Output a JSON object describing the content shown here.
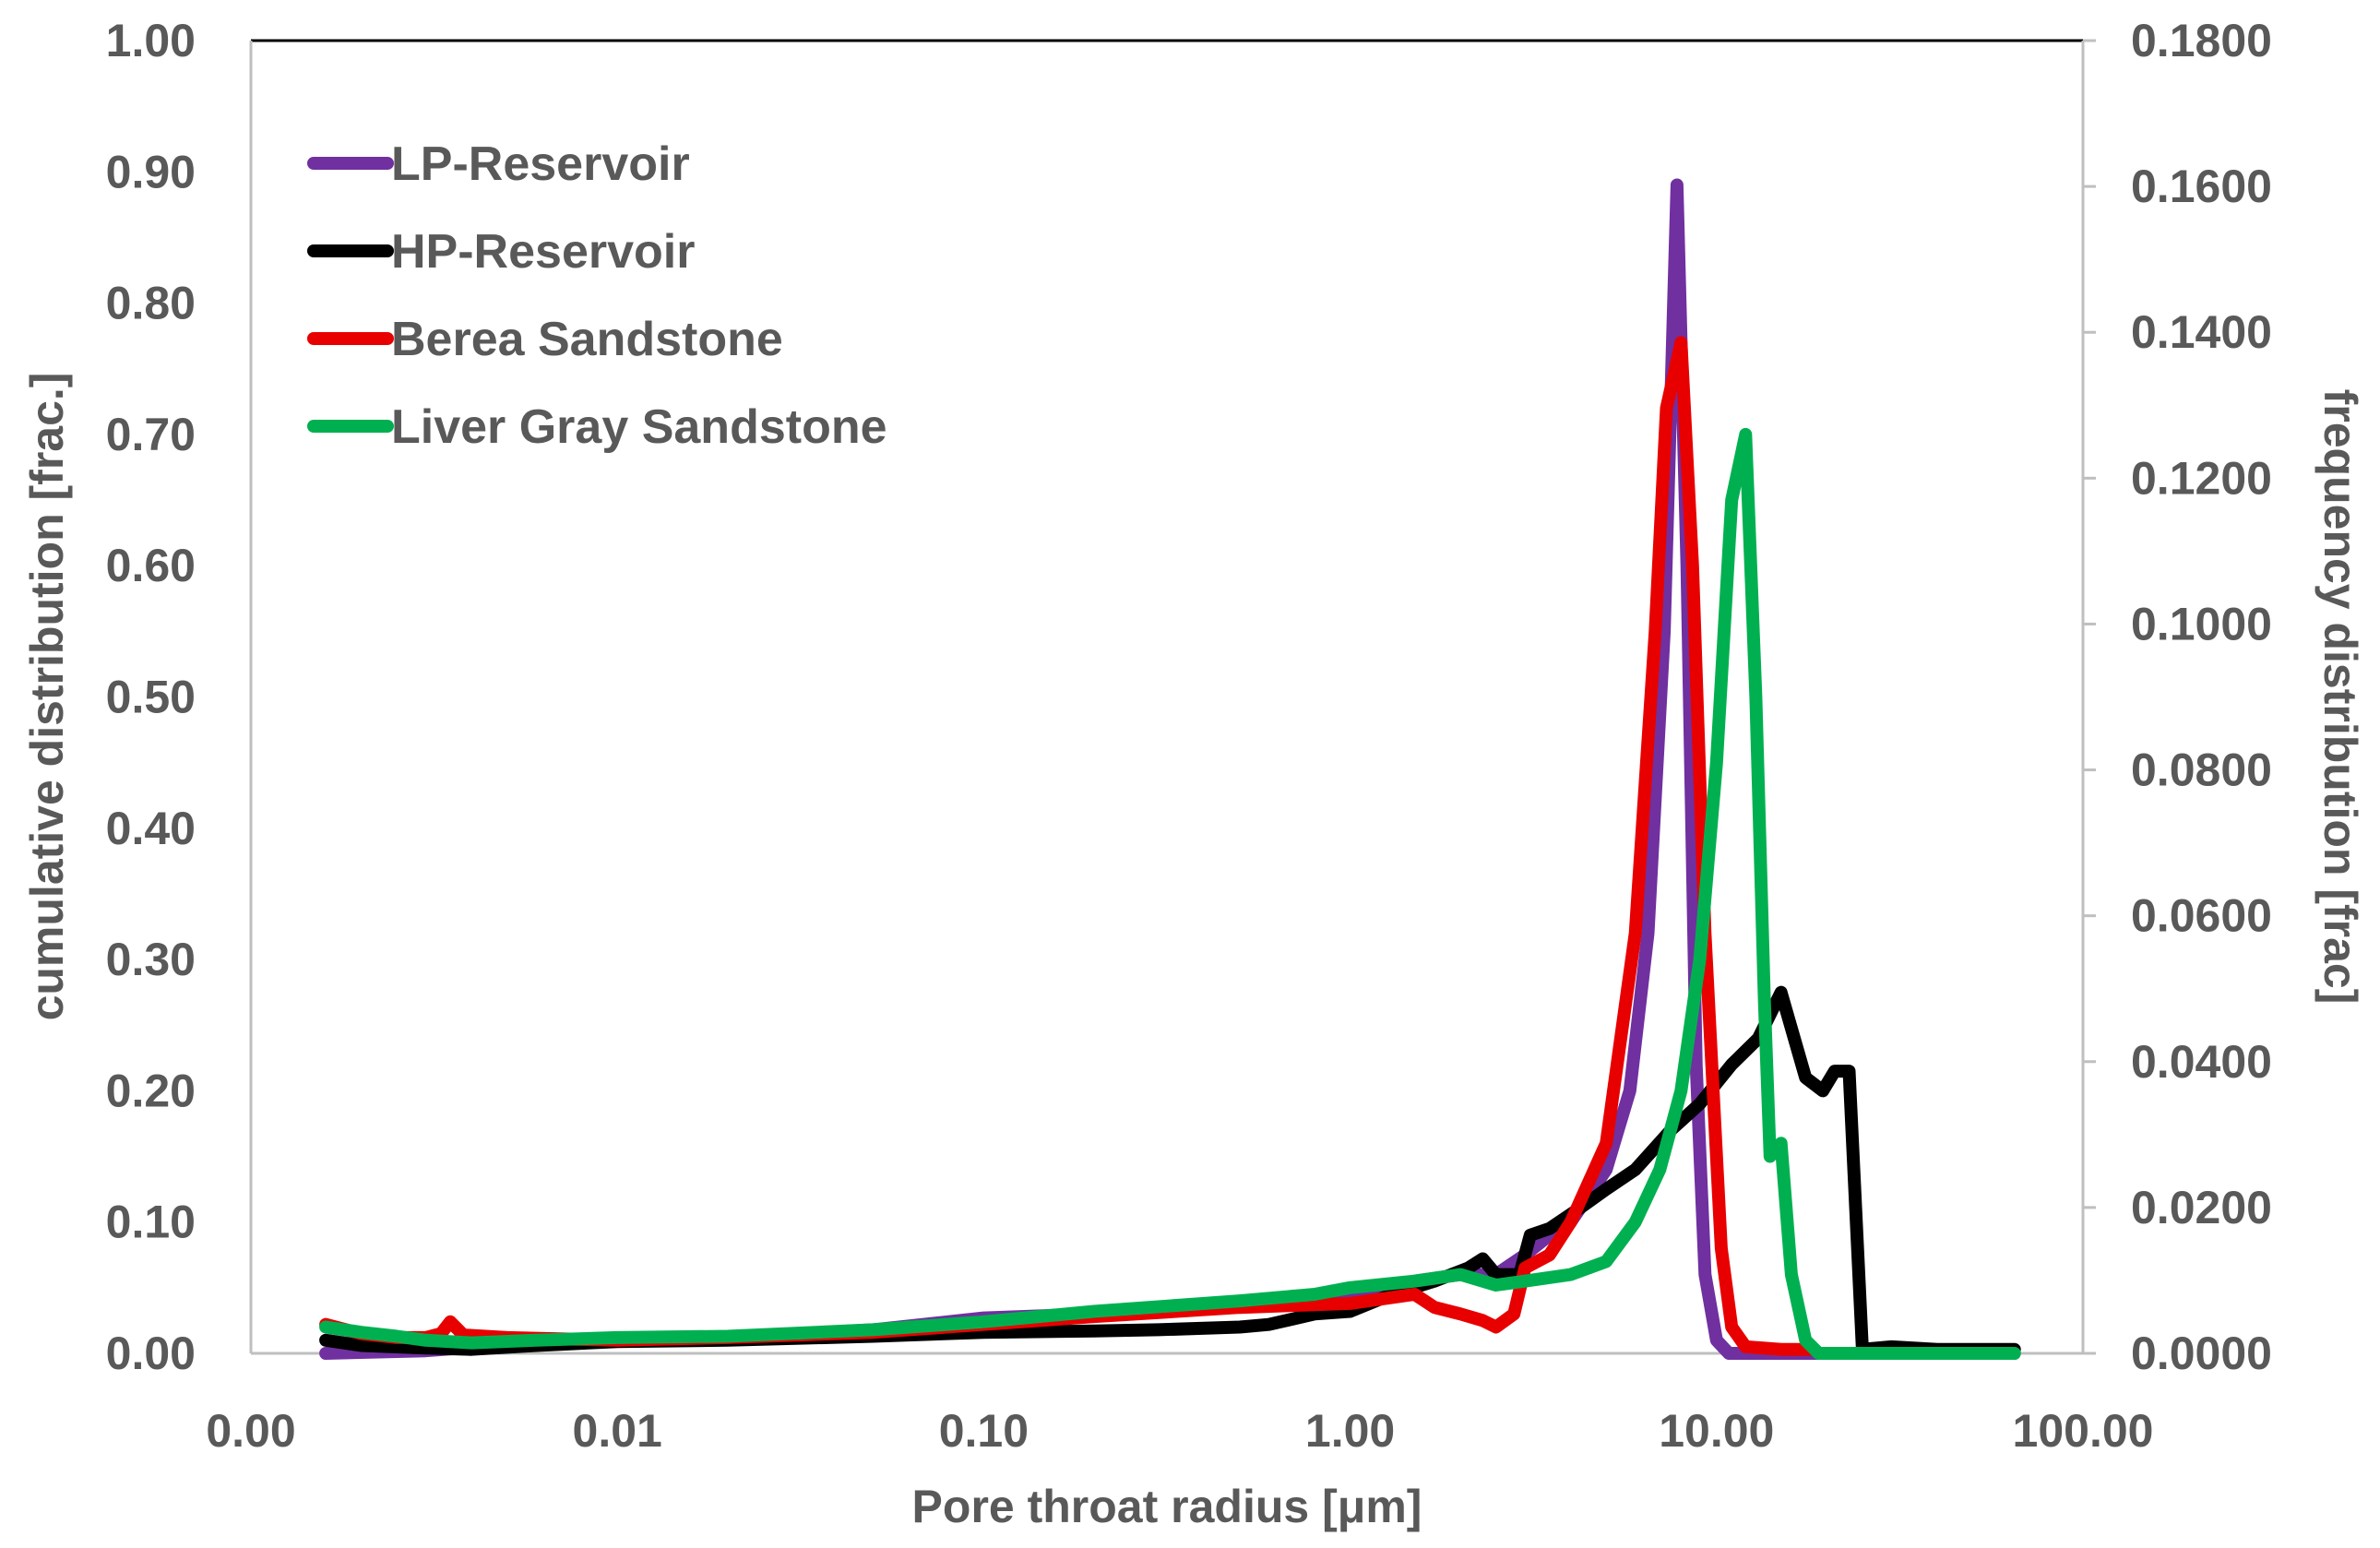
{
  "chart_data": {
    "type": "line",
    "title": "",
    "xlabel": "Pore throat radius [μm]",
    "ylabel": "cumulative distribution [frac.]",
    "y2label": "frequency distribution [frac]",
    "xscale": "log",
    "xlim": [
      0.001,
      100
    ],
    "ylim": [
      0,
      1.0
    ],
    "y2lim": [
      0,
      0.18
    ],
    "x_tick_labels": [
      "0.00",
      "0.01",
      "0.10",
      "1.00",
      "10.00",
      "100.00"
    ],
    "y_tick_labels": [
      "0.00",
      "0.10",
      "0.20",
      "0.30",
      "0.40",
      "0.50",
      "0.60",
      "0.70",
      "0.80",
      "0.90",
      "1.00"
    ],
    "y2_tick_labels": [
      "0.0000",
      "0.0200",
      "0.0400",
      "0.0600",
      "0.0800",
      "0.1000",
      "0.1200",
      "0.1400",
      "0.1600",
      "0.1800"
    ],
    "legend_position": "top-left",
    "series": [
      {
        "name": "LP-Reservoir",
        "color": "#7030A0",
        "points": [
          [
            0.0016,
            0.0
          ],
          [
            0.003,
            0.002
          ],
          [
            0.006,
            0.008
          ],
          [
            0.01,
            0.01
          ],
          [
            0.02,
            0.012
          ],
          [
            0.05,
            0.018
          ],
          [
            0.1,
            0.027
          ],
          [
            0.2,
            0.03
          ],
          [
            0.3,
            0.035
          ],
          [
            0.5,
            0.038
          ],
          [
            0.8,
            0.043
          ],
          [
            1.0,
            0.045
          ],
          [
            1.5,
            0.055
          ],
          [
            2.0,
            0.06
          ],
          [
            2.5,
            0.06
          ],
          [
            3.0,
            0.075
          ],
          [
            3.5,
            0.09
          ],
          [
            4.0,
            0.1
          ],
          [
            5.0,
            0.14
          ],
          [
            5.8,
            0.2
          ],
          [
            6.5,
            0.32
          ],
          [
            7.2,
            0.55
          ],
          [
            7.8,
            0.89
          ],
          [
            8.3,
            0.6
          ],
          [
            8.8,
            0.22
          ],
          [
            9.3,
            0.06
          ],
          [
            10.0,
            0.01
          ],
          [
            10.8,
            0.0
          ],
          [
            15.0,
            0.0
          ],
          [
            30.0,
            0.0
          ],
          [
            65.0,
            0.0
          ]
        ]
      },
      {
        "name": "HP-Reservoir",
        "color": "#000000",
        "points": [
          [
            0.0016,
            0.01
          ],
          [
            0.002,
            0.006
          ],
          [
            0.003,
            0.004
          ],
          [
            0.004,
            0.003
          ],
          [
            0.006,
            0.006
          ],
          [
            0.01,
            0.009
          ],
          [
            0.02,
            0.01
          ],
          [
            0.05,
            0.013
          ],
          [
            0.1,
            0.016
          ],
          [
            0.2,
            0.017
          ],
          [
            0.3,
            0.018
          ],
          [
            0.5,
            0.02
          ],
          [
            0.6,
            0.022
          ],
          [
            0.8,
            0.03
          ],
          [
            1.0,
            0.032
          ],
          [
            1.3,
            0.045
          ],
          [
            1.7,
            0.055
          ],
          [
            2.1,
            0.065
          ],
          [
            2.3,
            0.072
          ],
          [
            2.5,
            0.06
          ],
          [
            2.9,
            0.06
          ],
          [
            3.1,
            0.09
          ],
          [
            3.5,
            0.095
          ],
          [
            4.2,
            0.11
          ],
          [
            5.0,
            0.125
          ],
          [
            6.0,
            0.14
          ],
          [
            7.5,
            0.17
          ],
          [
            9.0,
            0.19
          ],
          [
            11.0,
            0.22
          ],
          [
            13.0,
            0.24
          ],
          [
            15.0,
            0.275
          ],
          [
            17.5,
            0.21
          ],
          [
            19.5,
            0.2
          ],
          [
            21.0,
            0.215
          ],
          [
            23.0,
            0.215
          ],
          [
            25.0,
            0.003
          ],
          [
            30.0,
            0.005
          ],
          [
            40.0,
            0.003
          ],
          [
            65.0,
            0.003
          ]
        ]
      },
      {
        "name": "Berea Sandstone",
        "color": "#E80000",
        "points": [
          [
            0.0016,
            0.022
          ],
          [
            0.002,
            0.015
          ],
          [
            0.0025,
            0.012
          ],
          [
            0.003,
            0.012
          ],
          [
            0.0033,
            0.015
          ],
          [
            0.0035,
            0.024
          ],
          [
            0.0038,
            0.014
          ],
          [
            0.005,
            0.012
          ],
          [
            0.01,
            0.01
          ],
          [
            0.02,
            0.012
          ],
          [
            0.05,
            0.016
          ],
          [
            0.1,
            0.022
          ],
          [
            0.2,
            0.028
          ],
          [
            0.5,
            0.035
          ],
          [
            1.0,
            0.038
          ],
          [
            1.5,
            0.045
          ],
          [
            1.7,
            0.035
          ],
          [
            2.0,
            0.03
          ],
          [
            2.3,
            0.025
          ],
          [
            2.5,
            0.02
          ],
          [
            2.8,
            0.03
          ],
          [
            3.0,
            0.065
          ],
          [
            3.5,
            0.075
          ],
          [
            4.0,
            0.1
          ],
          [
            5.0,
            0.16
          ],
          [
            6.0,
            0.32
          ],
          [
            6.8,
            0.55
          ],
          [
            7.3,
            0.72
          ],
          [
            8.0,
            0.77
          ],
          [
            8.6,
            0.6
          ],
          [
            9.3,
            0.32
          ],
          [
            10.3,
            0.08
          ],
          [
            11.0,
            0.02
          ],
          [
            12.0,
            0.005
          ],
          [
            15.0,
            0.003
          ],
          [
            18.0,
            0.003
          ]
        ]
      },
      {
        "name": "Liver Gray Sandstone",
        "color": "#00B050",
        "points": [
          [
            0.0016,
            0.02
          ],
          [
            0.002,
            0.016
          ],
          [
            0.0025,
            0.013
          ],
          [
            0.003,
            0.01
          ],
          [
            0.004,
            0.008
          ],
          [
            0.006,
            0.01
          ],
          [
            0.01,
            0.012
          ],
          [
            0.02,
            0.013
          ],
          [
            0.05,
            0.018
          ],
          [
            0.1,
            0.024
          ],
          [
            0.2,
            0.032
          ],
          [
            0.5,
            0.04
          ],
          [
            0.8,
            0.045
          ],
          [
            1.0,
            0.05
          ],
          [
            1.5,
            0.055
          ],
          [
            2.0,
            0.06
          ],
          [
            2.5,
            0.052
          ],
          [
            3.0,
            0.055
          ],
          [
            4.0,
            0.06
          ],
          [
            5.0,
            0.07
          ],
          [
            6.0,
            0.1
          ],
          [
            7.0,
            0.14
          ],
          [
            8.0,
            0.2
          ],
          [
            9.0,
            0.3
          ],
          [
            10.0,
            0.45
          ],
          [
            11.0,
            0.65
          ],
          [
            12.0,
            0.7
          ],
          [
            12.8,
            0.5
          ],
          [
            13.5,
            0.27
          ],
          [
            14.0,
            0.15
          ],
          [
            15.0,
            0.16
          ],
          [
            16.0,
            0.06
          ],
          [
            17.5,
            0.01
          ],
          [
            19.0,
            0.0
          ],
          [
            30.0,
            0.0
          ],
          [
            65.0,
            0.0
          ]
        ]
      }
    ]
  }
}
